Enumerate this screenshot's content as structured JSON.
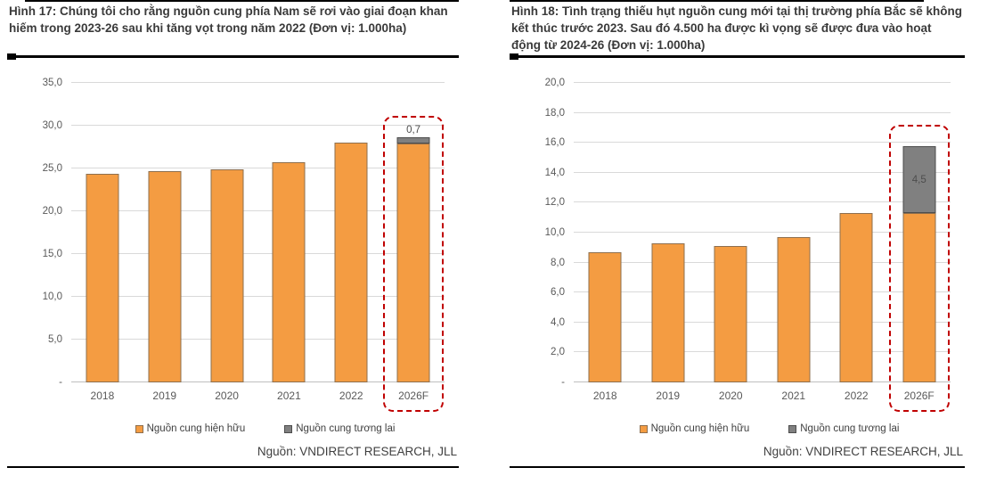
{
  "figures": [
    {
      "title": "Hình 17: Chúng tôi cho rằng nguồn cung phía Nam sẽ rơi vào giai đoạn khan hiếm trong 2023-26 sau khi tăng vọt trong năm 2022 (Đơn vị: 1.000ha)",
      "source": "Nguồn: VNDIRECT RESEARCH, JLL"
    },
    {
      "title": "Hình 18: Tình trạng thiếu hụt nguồn cung mới tại thị trường phía Bắc sẽ không kết thúc trước 2023. Sau đó 4.500 ha được kì vọng sẽ được đưa vào hoạt động từ 2024-26 (Đơn vị: 1.000ha)",
      "source": "Nguồn: VNDIRECT RESEARCH, JLL"
    }
  ],
  "chart_data": [
    {
      "type": "bar",
      "stacked": true,
      "title": "Nguồn cung phía Nam (Đơn vị: 1.000ha)",
      "categories": [
        "2018",
        "2019",
        "2020",
        "2021",
        "2022",
        "2026F"
      ],
      "series": [
        {
          "name": "Nguồn cung hiện hữu",
          "values": [
            24.4,
            24.7,
            24.9,
            25.7,
            28.0,
            27.9
          ]
        },
        {
          "name": "Nguồn cung tương lai",
          "values": [
            0,
            0,
            0,
            0,
            0,
            0.7
          ]
        }
      ],
      "ylim": [
        0,
        35
      ],
      "ytick_values": [
        0,
        5,
        10,
        15,
        20,
        25,
        30,
        35
      ],
      "ytick_labels": [
        "-",
        "5,0",
        "10,0",
        "15,0",
        "20,0",
        "25,0",
        "30,0",
        "35,0"
      ],
      "grid": true,
      "legend_position": "bottom",
      "highlight_category": "2026F",
      "data_label": {
        "text": "0,7",
        "placement": "above"
      }
    },
    {
      "type": "bar",
      "stacked": true,
      "title": "Nguồn cung phía Bắc (Đơn vị: 1.000ha)",
      "categories": [
        "2018",
        "2019",
        "2020",
        "2021",
        "2022",
        "2026F"
      ],
      "series": [
        {
          "name": "Nguồn cung hiện hữu",
          "values": [
            8.7,
            9.3,
            9.1,
            9.7,
            11.3,
            11.3
          ]
        },
        {
          "name": "Nguồn cung tương lai",
          "values": [
            0,
            0,
            0,
            0,
            0,
            4.5
          ]
        }
      ],
      "ylim": [
        0,
        20
      ],
      "ytick_values": [
        0,
        2,
        4,
        6,
        8,
        10,
        12,
        14,
        16,
        18,
        20
      ],
      "ytick_labels": [
        "-",
        "2,0",
        "4,0",
        "6,0",
        "8,0",
        "10,0",
        "12,0",
        "14,0",
        "16,0",
        "18,0",
        "20,0"
      ],
      "grid": true,
      "legend_position": "bottom",
      "highlight_category": "2026F",
      "data_label": {
        "text": "4,5",
        "placement": "inside"
      }
    }
  ],
  "colors": {
    "bar_existing": "#F49C42",
    "bar_existing_border": "#8E6F4E",
    "bar_future": "#808080",
    "bar_future_border": "#4D4D4D",
    "highlight_dash": "#C00000",
    "gridline": "#D9D9D9",
    "axis_line": "#BFBFBF",
    "tick_text": "#595959",
    "title_text": "#3A3A3A"
  }
}
